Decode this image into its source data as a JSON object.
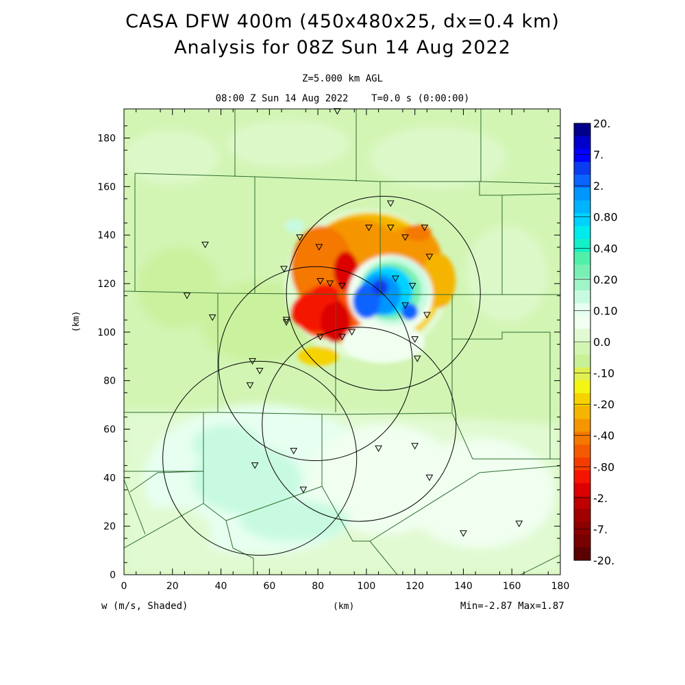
{
  "title_line1": "CASA DFW 400m (450x480x25, dx=0.4 km)",
  "title_line2": "Analysis for 08Z Sun 14 Aug 2022",
  "level_label": "Z=5.000 km AGL",
  "time_label": "08:00 Z Sun 14 Aug 2022    T=0.0 s (0:00:00)",
  "x_axis_label": "(km)",
  "y_axis_label": "(km)",
  "field_label": "w (m/s, Shaded)",
  "minmax_label": "Min=-2.87 Max=1.87",
  "x_ticks": [
    "0",
    "20",
    "40",
    "60",
    "80",
    "100",
    "120",
    "140",
    "160",
    "180"
  ],
  "y_ticks": [
    "0",
    "20",
    "40",
    "60",
    "80",
    "100",
    "120",
    "140",
    "160",
    "180"
  ],
  "colorbar": {
    "labels": [
      "20.",
      "7.",
      "2.",
      "0.80",
      "0.40",
      "0.20",
      "0.10",
      "0.0",
      "-.10",
      "-.20",
      "-.40",
      "-.80",
      "-2.",
      "-7.",
      "-20."
    ],
    "colors": [
      "#00008b",
      "#0000cd",
      "#0000ff",
      "#0a3cf0",
      "#0a64ff",
      "#0096ff",
      "#00b4ff",
      "#00d2ff",
      "#00ebeb",
      "#14f0c8",
      "#50f0aa",
      "#78f0b4",
      "#a0f5c8",
      "#c8fae1",
      "#e6fff0",
      "#f0fff0",
      "#e1fad2",
      "#d2f5b4",
      "#c8f096",
      "#e1f050",
      "#f5f514",
      "#f5d200",
      "#f5b400",
      "#f59600",
      "#f57800",
      "#f55a00",
      "#f53c00",
      "#f51400",
      "#dc0000",
      "#be0000",
      "#a00000",
      "#8c0000",
      "#780000",
      "#5a0000"
    ]
  },
  "chart_data": {
    "type": "heatmap",
    "field": "w (m/s)",
    "x_range_km": [
      0,
      180
    ],
    "y_range_km": [
      0,
      192
    ],
    "min": -2.87,
    "max": 1.87,
    "radar_circles_km": [
      {
        "x": 107,
        "y": 116,
        "r": 40
      },
      {
        "x": 79,
        "y": 87,
        "r": 40
      },
      {
        "x": 97,
        "y": 62,
        "r": 40
      },
      {
        "x": 56,
        "y": 48,
        "r": 40
      }
    ],
    "stations_km": [
      [
        33.5,
        136
      ],
      [
        26,
        115
      ],
      [
        36.5,
        106
      ],
      [
        66,
        126
      ],
      [
        72.5,
        139
      ],
      [
        80.5,
        135
      ],
      [
        81,
        121
      ],
      [
        85,
        120
      ],
      [
        90,
        119
      ],
      [
        67,
        104
      ],
      [
        67,
        105
      ],
      [
        81,
        98
      ],
      [
        90,
        98
      ],
      [
        94,
        100
      ],
      [
        53,
        88
      ],
      [
        56,
        84
      ],
      [
        52,
        78
      ],
      [
        70,
        51
      ],
      [
        54,
        45
      ],
      [
        74,
        35
      ],
      [
        105,
        52
      ],
      [
        120,
        53
      ],
      [
        126,
        40
      ],
      [
        140,
        17
      ],
      [
        163,
        21
      ],
      [
        88,
        191
      ],
      [
        110,
        153
      ],
      [
        110,
        143
      ],
      [
        116,
        139
      ],
      [
        101,
        143
      ],
      [
        124,
        143
      ],
      [
        126,
        131
      ],
      [
        112,
        122
      ],
      [
        119,
        119
      ],
      [
        116,
        111
      ],
      [
        125,
        107
      ],
      [
        120,
        97
      ],
      [
        121,
        89
      ]
    ]
  }
}
